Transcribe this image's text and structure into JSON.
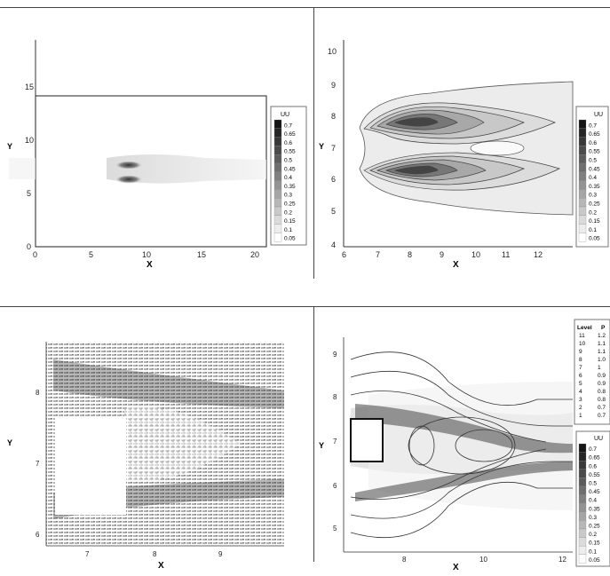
{
  "panels": [
    {
      "id": "uu-full",
      "xlabel": "X",
      "ylabel": "Y",
      "xticks": [
        "0",
        "5",
        "10",
        "15",
        "20"
      ],
      "yticks": [
        "0",
        "5",
        "10",
        "15"
      ],
      "legend_title": "UU",
      "legend_levels": [
        "0.7",
        "0.65",
        "0.6",
        "0.55",
        "0.5",
        "0.45",
        "0.4",
        "0.35",
        "0.3",
        "0.25",
        "0.2",
        "0.15",
        "0.1",
        "0.05"
      ]
    },
    {
      "id": "uu-zoom",
      "xlabel": "X",
      "ylabel": "Y",
      "xticks": [
        "6",
        "7",
        "8",
        "9",
        "10",
        "11",
        "12"
      ],
      "yticks": [
        "4",
        "5",
        "6",
        "7",
        "8",
        "9",
        "10"
      ],
      "legend_title": "UU",
      "legend_levels": [
        "0.7",
        "0.65",
        "0.6",
        "0.55",
        "0.5",
        "0.45",
        "0.4",
        "0.35",
        "0.3",
        "0.25",
        "0.2",
        "0.15",
        "0.1",
        "0.05"
      ]
    },
    {
      "id": "vectors",
      "xlabel": "X",
      "ylabel": "Y",
      "xticks": [
        "7",
        "8",
        "9"
      ],
      "yticks": [
        "6",
        "7",
        "8"
      ]
    },
    {
      "id": "pressure-uu",
      "xlabel": "X",
      "ylabel": "Y",
      "xticks": [
        "8",
        "10",
        "12"
      ],
      "yticks": [
        "5",
        "6",
        "7",
        "8",
        "9"
      ],
      "pressure_header": [
        "Level",
        "P"
      ],
      "pressure_levels": [
        [
          "11",
          "1.2"
        ],
        [
          "10",
          "1.1"
        ],
        [
          "9",
          "1.1"
        ],
        [
          "8",
          "1.0"
        ],
        [
          "7",
          "1"
        ],
        [
          "6",
          "0.9"
        ],
        [
          "5",
          "0.9"
        ],
        [
          "4",
          "0.8"
        ],
        [
          "3",
          "0.8"
        ],
        [
          "2",
          "0.7"
        ],
        [
          "1",
          "0.7"
        ]
      ],
      "legend_title": "UU",
      "legend_levels": [
        "0.7",
        "0.65",
        "0.6",
        "0.55",
        "0.5",
        "0.45",
        "0.4",
        "0.35",
        "0.3",
        "0.25",
        "0.2",
        "0.15",
        "0.1",
        "0.05"
      ]
    }
  ]
}
